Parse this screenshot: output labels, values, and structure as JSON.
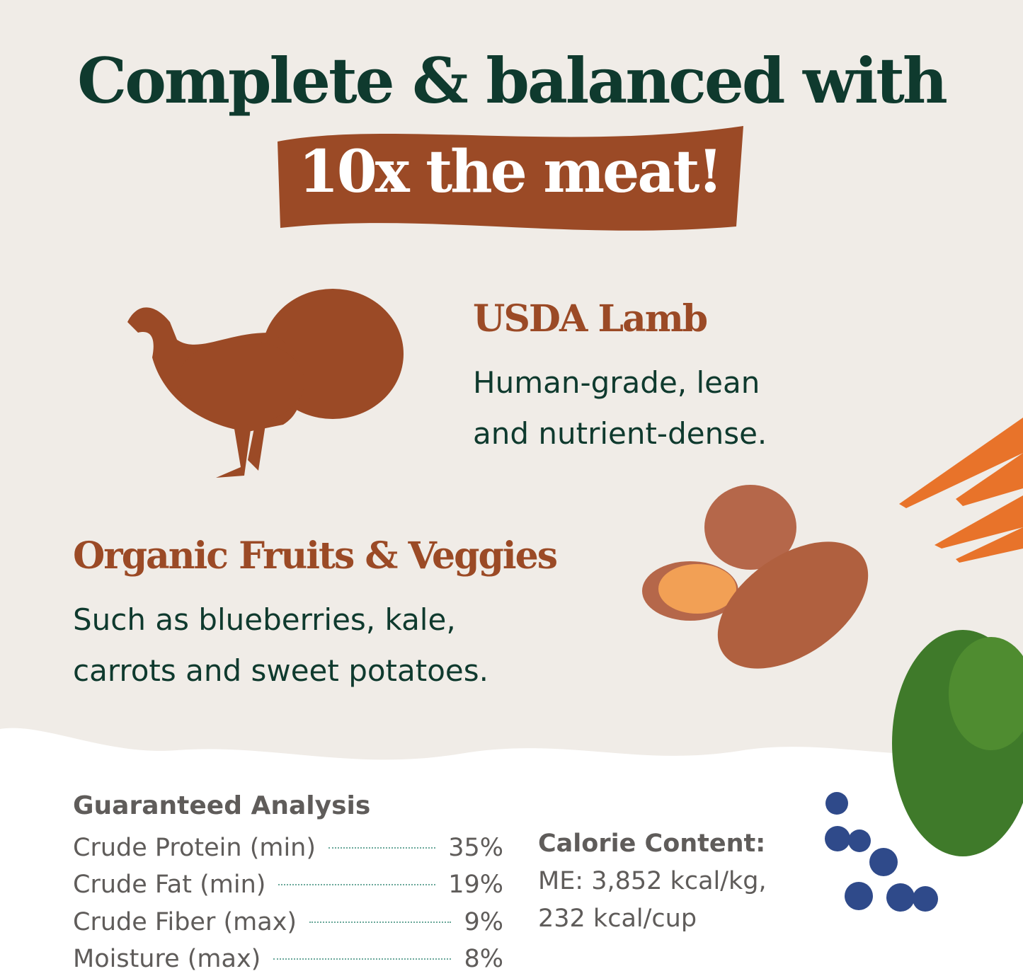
{
  "headline": {
    "line1": "Complete & balanced with",
    "banner": "10x the meat!"
  },
  "colors": {
    "dark_green": "#0f3a2e",
    "rust": "#9b4a26",
    "background": "#f0ece7",
    "gray_text": "#5f5c5a"
  },
  "features": [
    {
      "icon": "turkey-icon",
      "title": "USDA Lamb",
      "lines": [
        "Human-grade, lean",
        "and nutrient-dense."
      ]
    },
    {
      "title": "Organic Fruits & Veggies",
      "lines": [
        "Such as blueberries, kale,",
        "carrots and sweet potatoes."
      ]
    }
  ],
  "analysis": {
    "title": "Guaranteed Analysis",
    "rows": [
      {
        "label": "Crude Protein (min)",
        "value": "35%"
      },
      {
        "label": "Crude Fat (min)",
        "value": "19%"
      },
      {
        "label": "Crude Fiber (max)",
        "value": "9%"
      },
      {
        "label": "Moisture (max)",
        "value": "8%"
      }
    ]
  },
  "calories": {
    "title": "Calorie Content:",
    "line1": "ME: 3,852 kcal/kg,",
    "line2": "232 kcal/cup"
  }
}
